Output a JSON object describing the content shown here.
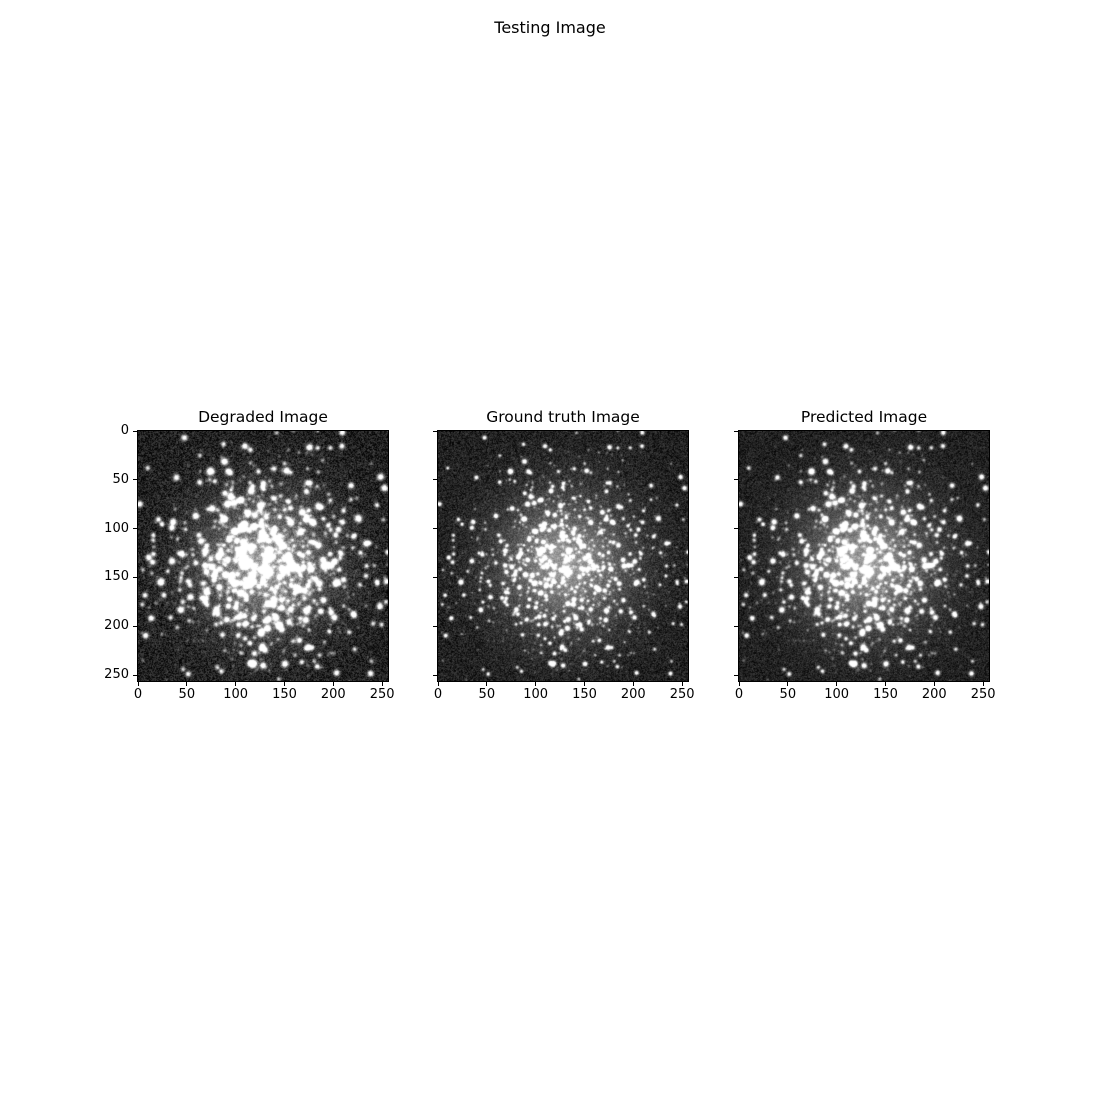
{
  "figure": {
    "suptitle": "Testing Image"
  },
  "chart_data": [
    {
      "type": "heatmap",
      "title": "Degraded Image",
      "colormap": "gray",
      "xlim": [
        0,
        256
      ],
      "ylim": [
        256,
        0
      ],
      "xticks": [
        0,
        50,
        100,
        150,
        200,
        250
      ],
      "yticks": [
        0,
        50,
        100,
        150,
        200,
        250
      ],
      "xtick_labels": [
        "0",
        "50",
        "100",
        "150",
        "200",
        "250"
      ],
      "ytick_labels": [
        "0",
        "50",
        "100",
        "150",
        "200",
        "250"
      ],
      "image_shape": [
        256,
        256
      ],
      "cluster_center": [
        130,
        135
      ]
    },
    {
      "type": "heatmap",
      "title": "Ground truth Image",
      "colormap": "gray",
      "xlim": [
        0,
        256
      ],
      "ylim": [
        256,
        0
      ],
      "xticks": [
        0,
        50,
        100,
        150,
        200,
        250
      ],
      "yticks": [
        0,
        50,
        100,
        150,
        200,
        250
      ],
      "xtick_labels": [
        "0",
        "50",
        "100",
        "150",
        "200",
        "250"
      ],
      "ytick_labels": [],
      "image_shape": [
        256,
        256
      ],
      "cluster_center": [
        130,
        135
      ]
    },
    {
      "type": "heatmap",
      "title": "Predicted Image",
      "colormap": "gray",
      "xlim": [
        0,
        256
      ],
      "ylim": [
        256,
        0
      ],
      "xticks": [
        0,
        50,
        100,
        150,
        200,
        250
      ],
      "yticks": [
        0,
        50,
        100,
        150,
        200,
        250
      ],
      "xtick_labels": [
        "0",
        "50",
        "100",
        "150",
        "200",
        "250"
      ],
      "ytick_labels": [],
      "image_shape": [
        256,
        256
      ],
      "cluster_center": [
        130,
        135
      ]
    }
  ]
}
